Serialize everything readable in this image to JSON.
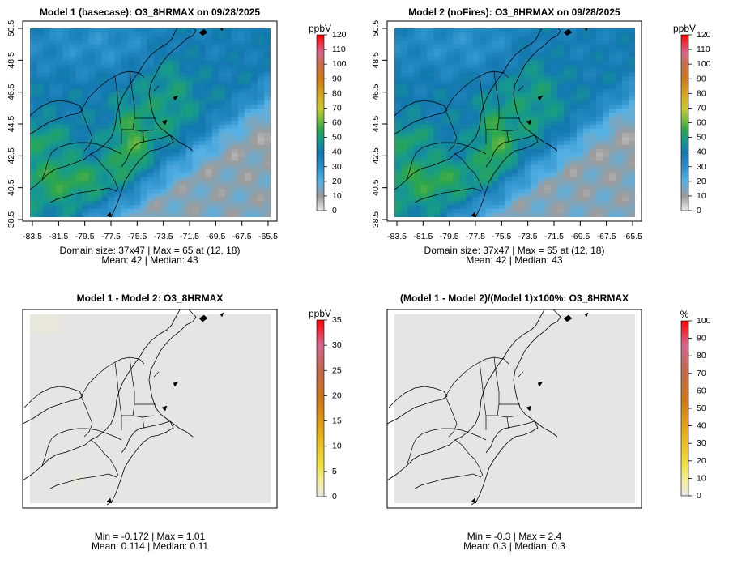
{
  "chart_data": [
    {
      "type": "heatmap",
      "title": "Model 1 (basecase): O3_8HRMAX on 09/28/2025",
      "xlabel": "",
      "ylabel": "",
      "x_ticks": [
        "-83.5",
        "-81.5",
        "-79.5",
        "-77.5",
        "-75.5",
        "-73.5",
        "-71.5",
        "-69.5",
        "-67.5",
        "-65.5"
      ],
      "y_ticks": [
        "38.5",
        "40.5",
        "42.5",
        "44.5",
        "46.5",
        "48.5",
        "50.5"
      ],
      "xlim": [
        -84.1,
        -64.6
      ],
      "ylim": [
        38.3,
        50.8
      ],
      "colorbar": {
        "unit": "ppbV",
        "ticks": [
          "0",
          "10",
          "20",
          "30",
          "40",
          "50",
          "60",
          "70",
          "80",
          "90",
          "100",
          "110",
          "120"
        ],
        "min": 0,
        "max": 120
      },
      "stats": [
        "Domain size: 37x47 | Max = 65 at (12, 18)",
        "Mean: 42 |  Median: 43"
      ],
      "summary": {
        "domain_size": "37x47",
        "max": 65,
        "max_location": "(12, 18)",
        "mean": 42,
        "median": 43
      },
      "scene": "ozone"
    },
    {
      "type": "heatmap",
      "title": "Model 2 (noFires): O3_8HRMAX on 09/28/2025",
      "xlabel": "",
      "ylabel": "",
      "x_ticks": [
        "-83.5",
        "-81.5",
        "-79.5",
        "-77.5",
        "-75.5",
        "-73.5",
        "-71.5",
        "-69.5",
        "-67.5",
        "-65.5"
      ],
      "y_ticks": [
        "38.5",
        "40.5",
        "42.5",
        "44.5",
        "46.5",
        "48.5",
        "50.5"
      ],
      "xlim": [
        -84.1,
        -64.6
      ],
      "ylim": [
        38.3,
        50.8
      ],
      "colorbar": {
        "unit": "ppbV",
        "ticks": [
          "0",
          "10",
          "20",
          "30",
          "40",
          "50",
          "60",
          "70",
          "80",
          "90",
          "100",
          "110",
          "120"
        ],
        "min": 0,
        "max": 120
      },
      "stats": [
        "Domain size: 37x47 | Max = 65 at (12, 18)",
        "Mean: 42 |  Median: 43"
      ],
      "summary": {
        "domain_size": "37x47",
        "max": 65,
        "max_location": "(12, 18)",
        "mean": 42,
        "median": 43
      },
      "scene": "ozone"
    },
    {
      "type": "heatmap",
      "title": "Model 1 - Model 2: O3_8HRMAX",
      "xlabel": "",
      "ylabel": "",
      "x_ticks": [],
      "y_ticks": [],
      "colorbar": {
        "unit": "ppbV",
        "ticks": [
          "0",
          "5",
          "10",
          "15",
          "20",
          "25",
          "30",
          "35"
        ],
        "min": 0,
        "max": 35
      },
      "stats": [
        "Min = -0.172 | Max = 1.01",
        "Mean: 0.114 |  Median: 0.11"
      ],
      "summary": {
        "min": -0.172,
        "max": 1.01,
        "mean": 0.114,
        "median": 0.11
      },
      "scene": "diff"
    },
    {
      "type": "heatmap",
      "title": "(Model 1 - Model 2)/(Model 1)x100%: O3_8HRMAX",
      "xlabel": "",
      "ylabel": "",
      "x_ticks": [],
      "y_ticks": [],
      "colorbar": {
        "unit": "%",
        "ticks": [
          "0",
          "10",
          "20",
          "30",
          "40",
          "50",
          "60",
          "70",
          "80",
          "90",
          "100"
        ],
        "min": 0,
        "max": 100
      },
      "stats": [
        "Min = -0.3 | Max = 2.4",
        "Mean: 0.3 |  Median: 0.3"
      ],
      "summary": {
        "min": -0.3,
        "max": 2.4,
        "mean": 0.3,
        "median": 0.3
      },
      "scene": "pct"
    }
  ]
}
